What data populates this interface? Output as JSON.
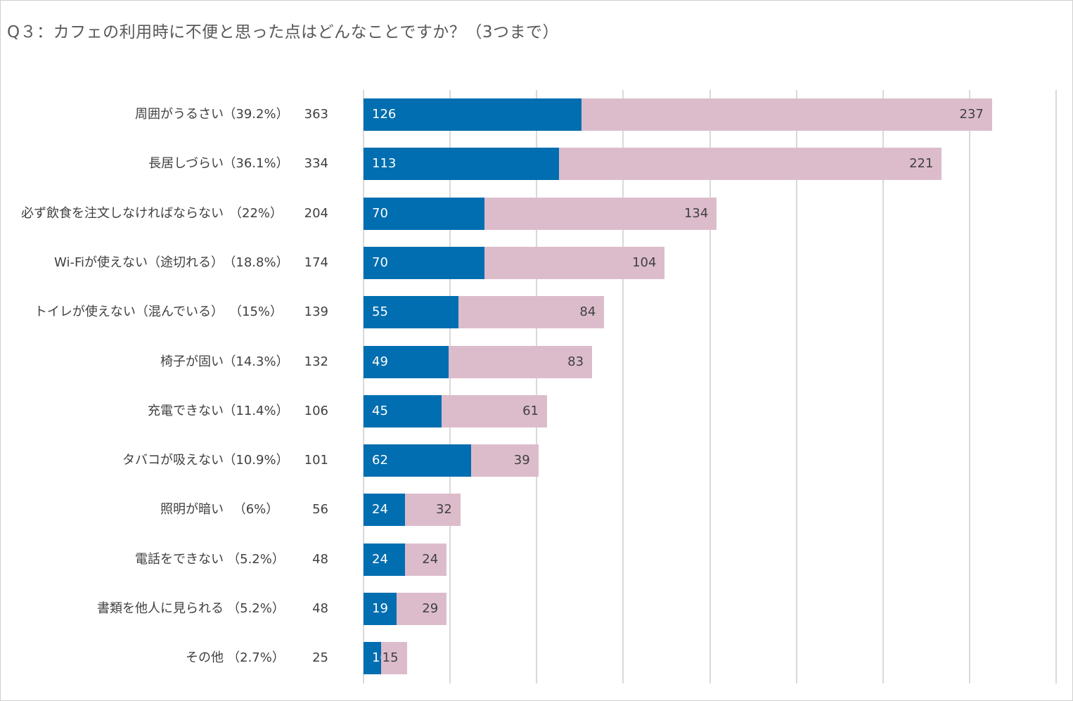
{
  "chart_data": {
    "type": "bar",
    "orientation": "horizontal",
    "stacked": true,
    "title": "Q３：カフェの利用時に不便と思った点はどんなことですか？（3つまで）",
    "xlim": [
      0,
      400
    ],
    "grid": true,
    "colors": {
      "series1": "#006eb0",
      "series2": "#dcbccb",
      "series1_label_text": "#ffffff",
      "series2_label_text": "#404040"
    },
    "categories": [
      {
        "label": "周囲がうるさい",
        "pct": "（39.2%）",
        "total": "363"
      },
      {
        "label": "長居しづらい",
        "pct": "（36.1%）",
        "total": "334"
      },
      {
        "label": "必ず飲食を注文しなければならない",
        "pct": "（22%）",
        "total": "204"
      },
      {
        "label": "Wi-Fiが使えない（途切れる）",
        "pct": "（18.8%）",
        "total": "174"
      },
      {
        "label": "トイレが使えない（混んでいる）",
        "pct": "（15%）",
        "total": "139"
      },
      {
        "label": "椅子が固い",
        "pct": "（14.3%）",
        "total": "132"
      },
      {
        "label": "充電できない",
        "pct": "（11.4%）",
        "total": "106"
      },
      {
        "label": "タバコが吸えない",
        "pct": "（10.9%）",
        "total": "101"
      },
      {
        "label": "照明が暗い",
        "pct": "（6%）",
        "total": "56"
      },
      {
        "label": "電話をできない",
        "pct": "（5.2%）",
        "total": "48"
      },
      {
        "label": "書類を他人に見られる",
        "pct": "（5.2%）",
        "total": "48"
      },
      {
        "label": "その他",
        "pct": "（2.7%）",
        "total": "25"
      }
    ],
    "series": [
      {
        "name": "series1",
        "values": [
          126,
          113,
          70,
          70,
          55,
          49,
          45,
          62,
          24,
          24,
          19,
          10
        ]
      },
      {
        "name": "series2",
        "values": [
          237,
          221,
          134,
          104,
          84,
          83,
          61,
          39,
          32,
          24,
          29,
          15
        ]
      }
    ]
  }
}
